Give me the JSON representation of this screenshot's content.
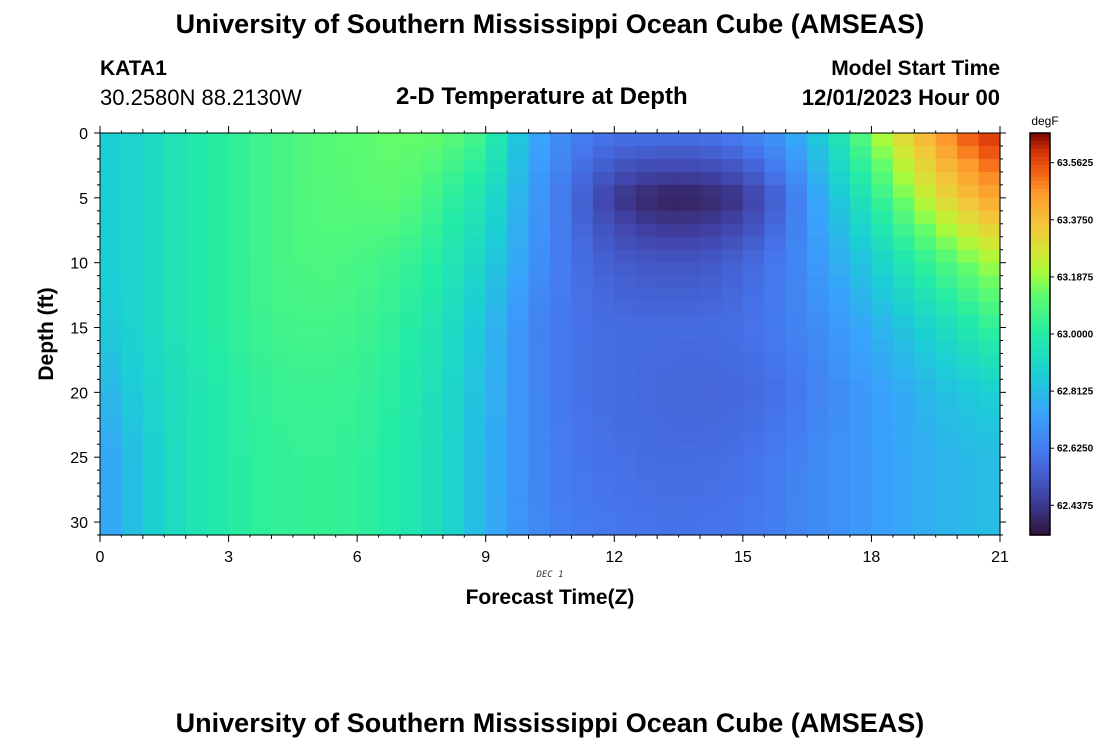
{
  "header": {
    "title": "University of Southern Mississippi Ocean Cube (AMSEAS)",
    "station": "KATA1",
    "coordinates": "30.2580N  88.2130W",
    "plot_title": "2-D Temperature at Depth",
    "model_start_label": "Model Start Time",
    "model_start_value": "12/01/2023 Hour 00"
  },
  "footer": {
    "title": "University of Southern Mississippi Ocean Cube (AMSEAS)"
  },
  "chart_data": {
    "type": "heatmap",
    "title": "2-D Temperature at Depth",
    "xlabel": "Forecast Time(Z)",
    "ylabel": "Depth (ft)",
    "x_sublabel": "DEC 1",
    "xlim": [
      0,
      21
    ],
    "ylim": [
      0,
      31
    ],
    "xticks": [
      0,
      3,
      6,
      9,
      12,
      15,
      18,
      21
    ],
    "yticks": [
      0,
      5,
      10,
      15,
      20,
      25,
      30
    ],
    "units": "degF",
    "colorbar_ticks": [
      "62.4375",
      "62.6250",
      "62.8125",
      "63.0000",
      "63.1875",
      "63.3750",
      "63.5625"
    ],
    "colorbar_range": [
      62.34,
      63.66
    ],
    "time_grid": [
      0,
      1,
      2,
      3,
      4,
      5,
      6,
      7,
      8,
      9,
      10,
      11,
      12,
      13,
      14,
      15,
      16,
      17,
      18,
      19,
      20,
      21
    ],
    "depth_grid": [
      0,
      5,
      10,
      15,
      20,
      25,
      31
    ],
    "values": [
      [
        62.86,
        62.9,
        62.97,
        63.02,
        63.07,
        63.1,
        63.12,
        63.14,
        63.13,
        63.05,
        62.78,
        62.64,
        62.6,
        62.6,
        62.6,
        62.64,
        62.72,
        62.9,
        63.17,
        63.36,
        63.52,
        63.62
      ],
      [
        62.86,
        62.9,
        62.97,
        63.02,
        63.07,
        63.1,
        63.11,
        63.12,
        63.04,
        62.95,
        62.74,
        62.58,
        62.44,
        62.38,
        62.38,
        62.43,
        62.58,
        62.8,
        63.0,
        63.2,
        63.35,
        63.45
      ],
      [
        62.86,
        62.9,
        62.97,
        63.02,
        63.07,
        63.09,
        63.08,
        63.05,
        62.99,
        62.88,
        62.71,
        62.6,
        62.54,
        62.52,
        62.52,
        62.56,
        62.63,
        62.74,
        62.86,
        63.0,
        63.12,
        63.22
      ],
      [
        62.84,
        62.9,
        62.97,
        63.02,
        63.06,
        63.07,
        63.06,
        63.02,
        62.95,
        62.82,
        62.66,
        62.6,
        62.58,
        62.58,
        62.58,
        62.59,
        62.63,
        62.69,
        62.77,
        62.86,
        62.95,
        63.05
      ],
      [
        62.78,
        62.88,
        62.95,
        63.0,
        63.04,
        63.05,
        63.04,
        63.0,
        62.93,
        62.8,
        62.67,
        62.6,
        62.58,
        62.57,
        62.56,
        62.57,
        62.6,
        62.66,
        62.72,
        62.78,
        62.84,
        62.88
      ],
      [
        62.72,
        62.85,
        62.95,
        63.0,
        63.03,
        63.04,
        63.03,
        62.99,
        62.92,
        62.79,
        62.67,
        62.61,
        62.59,
        62.58,
        62.58,
        62.59,
        62.63,
        62.68,
        62.72,
        62.76,
        62.8,
        62.82
      ],
      [
        62.72,
        62.85,
        62.95,
        63.0,
        63.03,
        63.04,
        63.03,
        62.99,
        62.92,
        62.78,
        62.67,
        62.63,
        62.61,
        62.6,
        62.6,
        62.61,
        62.64,
        62.68,
        62.72,
        62.76,
        62.8,
        62.82
      ]
    ]
  }
}
